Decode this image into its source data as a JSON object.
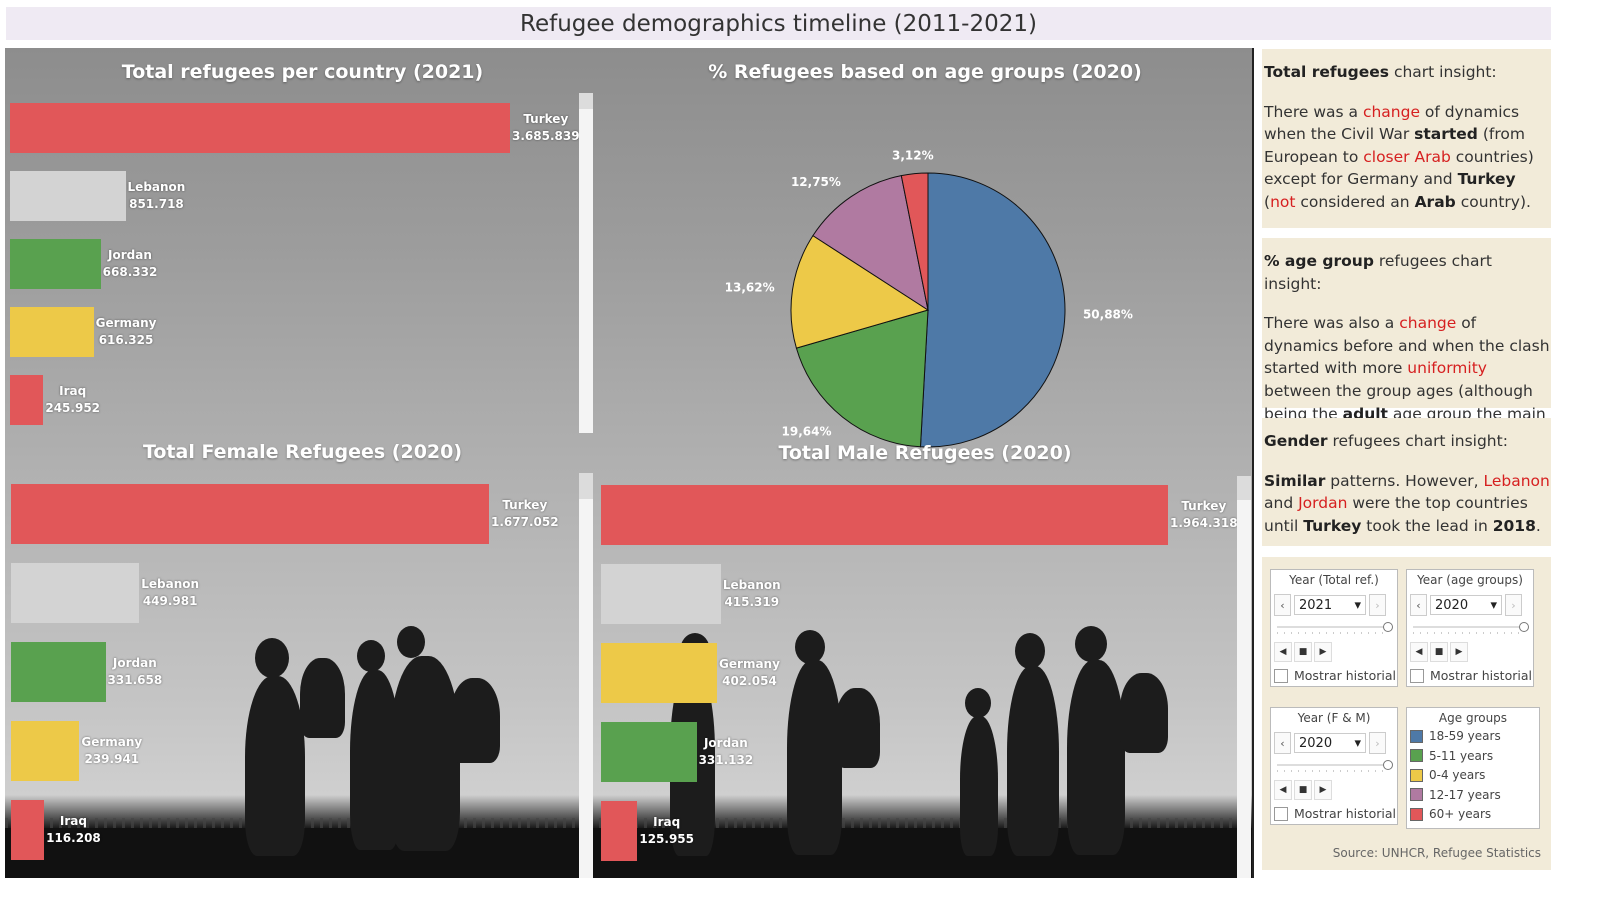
{
  "header": {
    "title": "Refugee demographics timeline (2011-2021)"
  },
  "colors": {
    "red": "#e15759",
    "grey": "#d3d3d3",
    "green": "#59a14f",
    "yellow": "#edc948",
    "blue": "#4e79a7",
    "purple": "#b07aa1"
  },
  "chart_data": [
    {
      "type": "bar",
      "title": "Total refugees per country (2021)",
      "categories": [
        "Turkey",
        "Lebanon",
        "Jordan",
        "Germany",
        "Iraq"
      ],
      "values": [
        3685839,
        851718,
        668332,
        616325,
        245952
      ],
      "value_labels": [
        "3.685.839",
        "851.718",
        "668.332",
        "616.325",
        "245.952"
      ]
    },
    {
      "type": "pie",
      "title": "% Refugees based on age groups (2020)",
      "categories": [
        "18-59 years",
        "5-11 years",
        "0-4 years",
        "12-17 years",
        "60+ years"
      ],
      "values": [
        50.88,
        19.64,
        13.62,
        12.75,
        3.12
      ],
      "value_labels": [
        "50,88%",
        "19,64%",
        "13,62%",
        "12,75%",
        "3,12%"
      ]
    },
    {
      "type": "bar",
      "title": "Total Female Refugees (2020)",
      "categories": [
        "Turkey",
        "Lebanon",
        "Jordan",
        "Germany",
        "Iraq"
      ],
      "values": [
        1677052,
        449981,
        331658,
        239941,
        116208
      ],
      "value_labels": [
        "1.677.052",
        "449.981",
        "331.658",
        "239.941",
        "116.208"
      ]
    },
    {
      "type": "bar",
      "title": "Total Male Refugees (2020)",
      "categories": [
        "Turkey",
        "Lebanon",
        "Germany",
        "Jordan",
        "Iraq"
      ],
      "values": [
        1964318,
        415319,
        402054,
        331132,
        125955
      ],
      "value_labels": [
        "1.964.318",
        "415.319",
        "402.054",
        "331.132",
        "125.955"
      ]
    }
  ],
  "insights": {
    "total": {
      "heading_bold": "Total refugees",
      "heading_rest": " chart insight:",
      "p1": "There was a ",
      "p2": "change",
      "p3": " of dynamics when the Civil War ",
      "p4": "started",
      "p5": " (from European to ",
      "p6": "closer Arab",
      "p7": " countries) except for Germany and ",
      "p8": "Turkey",
      "p9": " (",
      "p10": "not",
      "p11": " considered an ",
      "p12": "Arab",
      "p13": " country)."
    },
    "age": {
      "heading_bold": "% age group",
      "heading_rest": " refugees chart insight:",
      "p1": "There was also a ",
      "p2": "change",
      "p3": " of dynamics before and when the clash started with more ",
      "p4": "uniformity",
      "p5": " between the group ages (although being the ",
      "p6": "adult",
      "p7": " age group the main one)."
    },
    "gender": {
      "heading_bold": "Gender",
      "heading_rest": " refugees chart insight:",
      "p1": "Similar",
      "p2": " patterns. However, ",
      "p3": "Lebanon",
      "p4": " and ",
      "p5": "Jordan",
      "p6": " were the top countries until ",
      "p7": "Turkey",
      "p8": " took the lead in ",
      "p9": "2018",
      "p10": "."
    }
  },
  "controls": {
    "year_total": {
      "caption": "Year (Total ref.)",
      "value": "2021",
      "history": "Mostrar historial"
    },
    "year_age": {
      "caption": "Year (age groups)",
      "value": "2020",
      "history": "Mostrar historial"
    },
    "year_fm": {
      "caption": "Year (F & M)",
      "value": "2020",
      "history": "Mostrar historial"
    },
    "legend": {
      "caption": "Age groups",
      "items": [
        {
          "label": "18-59 years",
          "color": "#4e79a7"
        },
        {
          "label": "5-11 years",
          "color": "#59a14f"
        },
        {
          "label": "0-4 years",
          "color": "#edc948"
        },
        {
          "label": "12-17 years",
          "color": "#b07aa1"
        },
        {
          "label": "60+ years",
          "color": "#e15759"
        }
      ]
    },
    "icons": {
      "prev": "chevron-left-icon",
      "next": "chevron-right-icon",
      "dropdown": "caret-down-icon",
      "stop": "stop-icon"
    },
    "glyphs": {
      "prev": "‹",
      "next": "›",
      "caret": "▾",
      "stop": "■",
      "play_prev": "◀",
      "play_next": "▶"
    }
  },
  "source": "Source: UNHCR, Refugee Statistics"
}
